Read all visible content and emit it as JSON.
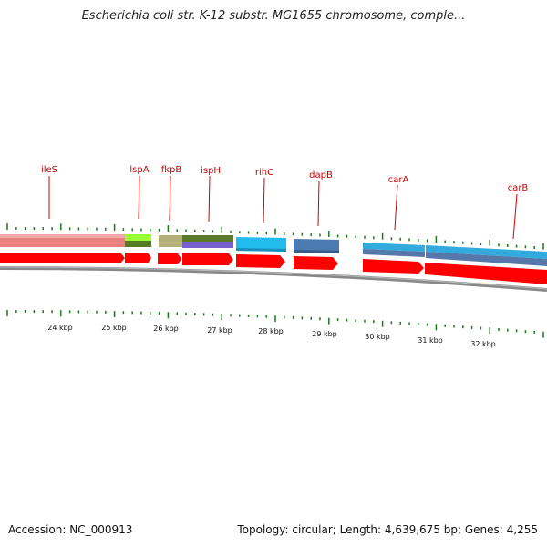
{
  "title": "Escherichia coli str. K-12 substr. MG1655 chromosome, comple...",
  "footer": {
    "accession": "Accession: NC_000913",
    "topology": "Topology: circular; Length: 4,639,675 bp; Genes: 4,255"
  },
  "genes": [
    {
      "name": "ileS"
    },
    {
      "name": "lspA"
    },
    {
      "name": "fkpB"
    },
    {
      "name": "ispH"
    },
    {
      "name": "rihC"
    },
    {
      "name": "dapB"
    },
    {
      "name": "carA"
    },
    {
      "name": "carB"
    }
  ],
  "scale": {
    "ticks": [
      "24 kbp",
      "25 kbp",
      "26 kbp",
      "27 kbp",
      "28 kbp",
      "29 kbp",
      "30 kbp",
      "31 kbp",
      "32 kbp"
    ]
  },
  "colors": {
    "gene_label": "#cc0000",
    "cds_arrow": "#ff0000",
    "tick": "#1a7a1a",
    "ileS": "#e88080",
    "lspA_top": "#99ff33",
    "lspA_bottom": "#557a1f",
    "fkpB": "#b5b07a",
    "ispH_top": "#5a7a2a",
    "ispH_bottom": "#7a5fd0",
    "rihC": "#22bbee",
    "dapB": "#4a7ab0",
    "carA_top": "#33aadd",
    "carA_bottom": "#5577aa",
    "backbone": "#888888"
  }
}
